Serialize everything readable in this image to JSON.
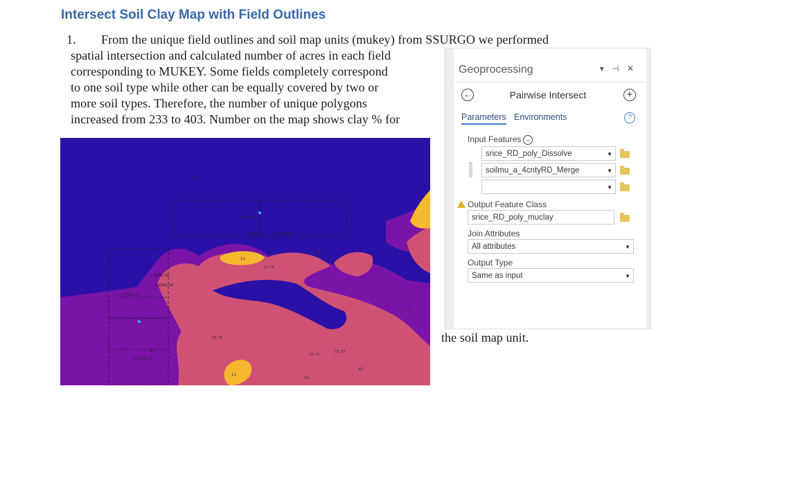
{
  "title": "Intersect Soil Clay Map with Field Outlines",
  "paragraph": {
    "number": "1.",
    "lines": [
      "From the unique field outlines and soil map units (mukey) from SSURGO we performed",
      "spatial intersection and calculated number of acres in each field",
      "corresponding to MUKEY. Some fields completely correspond",
      "to one soil type while other can be equally covered by two or",
      "more soil types. Therefore, the number of unique polygons",
      "increased from 233 to 403. Number on the map shows clay % for"
    ],
    "tail": "the soil map unit."
  },
  "map": {
    "labels": {
      "l54a": "54",
      "l54b": "54",
      "l40a": "40",
      "l40b": "40",
      "l40c": "40",
      "l11a": "11",
      "l11b": "11",
      "l1575a": "15.75",
      "l1575b": "15.75",
      "l1575c": "15.75",
      "l1575d": "15.75",
      "l1575e": "15.75"
    },
    "fields": {
      "f1": "NTH 80",
      "f2": "SOUTH 80",
      "f3": "NTH 80",
      "f4": "1 LEVEL 40",
      "f5": "2 LEVEL 40",
      "f6": "3 LEVEL 40",
      "f7": "40",
      "f8": "0 LEVEL 40"
    },
    "colors": {
      "clay54": "#2a10a6",
      "clay40": "#7a14a8",
      "clay1575": "#cf5274",
      "clay11": "#f5b82e"
    }
  },
  "geoprocessing": {
    "panel_title": "Geoprocessing",
    "window_controls": "▾ ⊣ ✕",
    "tool_name": "Pairwise Intersect",
    "back_glyph": "←",
    "add_glyph": "+",
    "help_glyph": "?",
    "tabs": {
      "parameters": "Parameters",
      "environments": "Environments"
    },
    "input_features_label": "Input Features",
    "input_features": [
      "srice_RD_poly_Dissolve",
      "soilmu_a_4cntyRD_Merge",
      ""
    ],
    "output_label": "Output Feature Class",
    "output_value": "srice_RD_poly_muclay",
    "join_label": "Join Attributes",
    "join_value": "All attributes",
    "output_type_label": "Output Type",
    "output_type_value": "Same as input"
  }
}
